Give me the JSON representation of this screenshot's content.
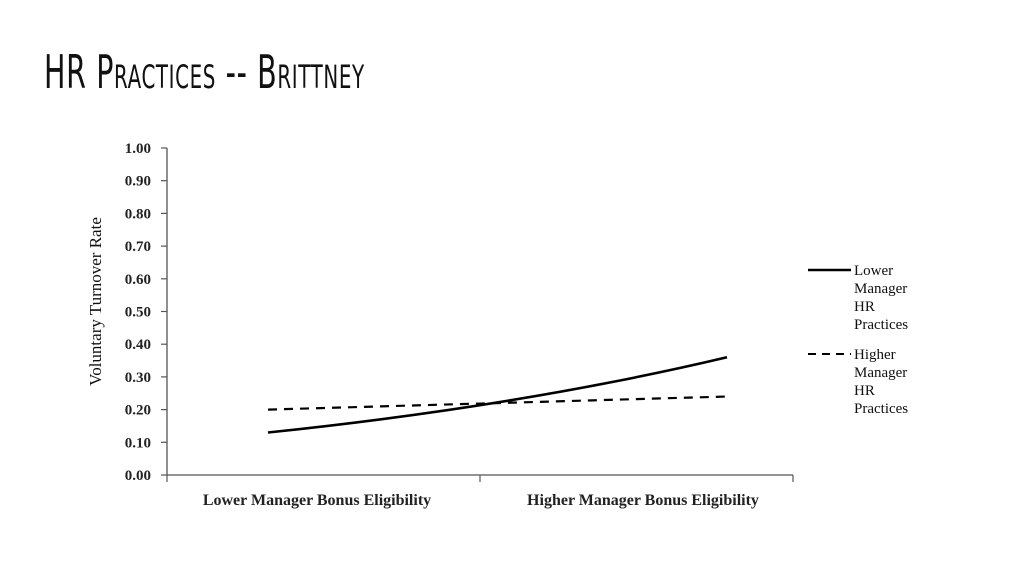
{
  "slide": {
    "title": "HR Practices -- Brittney"
  },
  "chart_data": {
    "type": "line",
    "x": [
      "Lower Manager Bonus Eligibility",
      "Higher Manager Bonus Eligibility"
    ],
    "ylabel": "Voluntary Turnover Rate",
    "xlabel": "",
    "ylim": [
      0,
      1.0
    ],
    "yticks": [
      "0.00",
      "0.10",
      "0.20",
      "0.30",
      "0.40",
      "0.50",
      "0.60",
      "0.70",
      "0.80",
      "0.90",
      "1.00"
    ],
    "grid": false,
    "legend_position": "right",
    "series": [
      {
        "name": "Lower Manager HR Practices",
        "name_lines": [
          "Lower",
          "Manager",
          "HR",
          "Practices"
        ],
        "style": "solid",
        "color": "#000000",
        "values": [
          0.13,
          0.36
        ]
      },
      {
        "name": "Higher Manager HR Practices",
        "name_lines": [
          "Higher",
          "Manager",
          "HR",
          "Practices"
        ],
        "style": "dashed",
        "color": "#000000",
        "values": [
          0.2,
          0.24
        ]
      }
    ]
  }
}
